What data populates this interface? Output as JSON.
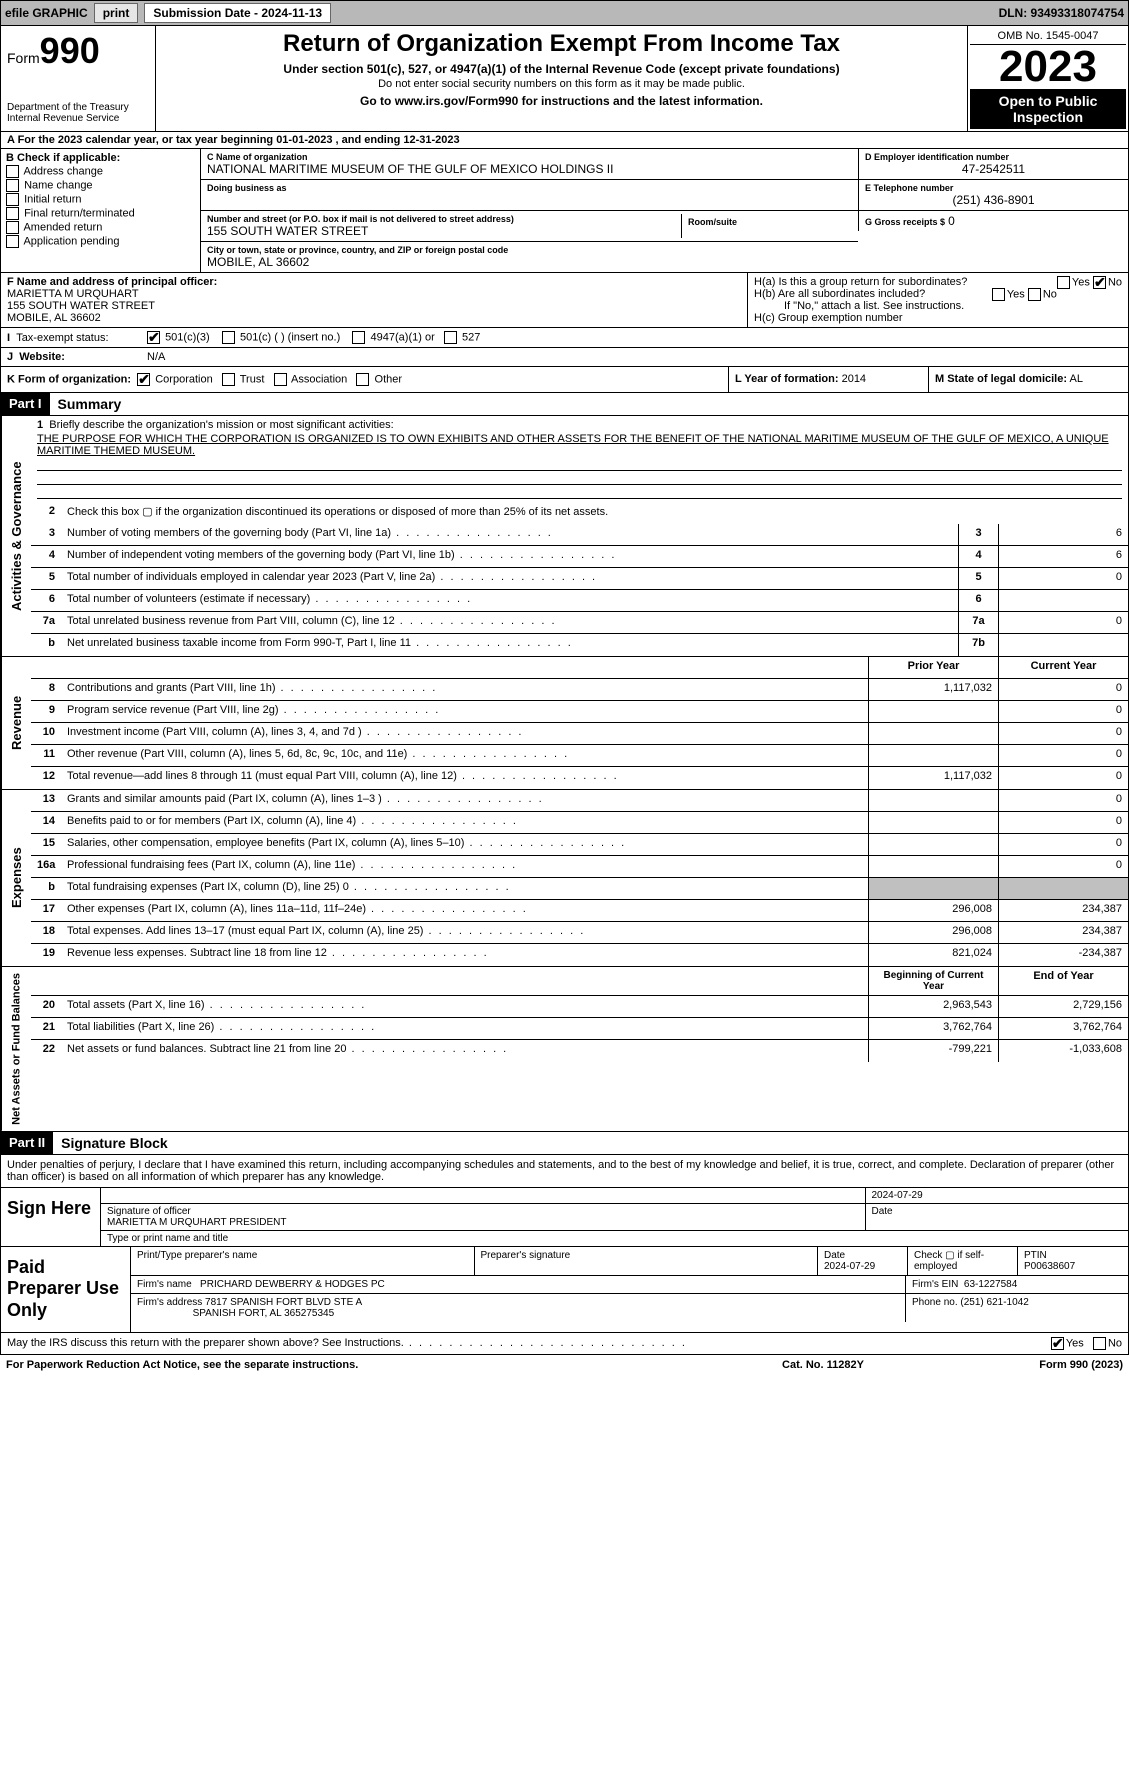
{
  "topbar": {
    "efile_label": "efile GRAPHIC",
    "print_btn": "print",
    "submission_label": "Submission Date - 2024-11-13",
    "dln": "DLN: 93493318074754"
  },
  "header": {
    "form_label": "Form",
    "form_number": "990",
    "dept": "Department of the Treasury Internal Revenue Service",
    "title": "Return of Organization Exempt From Income Tax",
    "subtitle": "Under section 501(c), 527, or 4947(a)(1) of the Internal Revenue Code (except private foundations)",
    "warn": "Do not enter social security numbers on this form as it may be made public.",
    "goto": "Go to www.irs.gov/Form990 for instructions and the latest information.",
    "omb": "OMB No. 1545-0047",
    "year": "2023",
    "public": "Open to Public Inspection"
  },
  "period": {
    "text": "A For the 2023 calendar year, or tax year beginning 01-01-2023    , and ending 12-31-2023"
  },
  "boxB": {
    "label": "B Check if applicable:",
    "opts": [
      "Address change",
      "Name change",
      "Initial return",
      "Final return/terminated",
      "Amended return",
      "Application pending"
    ]
  },
  "boxC": {
    "name_label": "C Name of organization",
    "name": "NATIONAL MARITIME MUSEUM OF THE GULF OF MEXICO HOLDINGS II",
    "dba_label": "Doing business as",
    "street_label": "Number and street (or P.O. box if mail is not delivered to street address)",
    "room_label": "Room/suite",
    "street": "155 SOUTH WATER STREET",
    "city_label": "City or town, state or province, country, and ZIP or foreign postal code",
    "city": "MOBILE, AL  36602"
  },
  "boxD": {
    "label": "D Employer identification number",
    "value": "47-2542511"
  },
  "boxE": {
    "label": "E Telephone number",
    "value": "(251) 436-8901"
  },
  "boxG": {
    "label": "G Gross receipts $",
    "value": "0"
  },
  "boxF": {
    "label": "F Name and address of principal officer:",
    "name": "MARIETTA M URQUHART",
    "street": "155 SOUTH WATER STREET",
    "city": "MOBILE, AL  36602"
  },
  "boxH": {
    "a_label": "H(a)  Is this a group return for subordinates?",
    "yes": "Yes",
    "no": "No",
    "b_label": "H(b)  Are all subordinates included?",
    "b_note": "If \"No,\" attach a list. See instructions.",
    "c_label": "H(c)  Group exemption number"
  },
  "taxStatus": {
    "label": "Tax-exempt status:",
    "opt1": "501(c)(3)",
    "opt2": "501(c) (  ) (insert no.)",
    "opt3": "4947(a)(1) or",
    "opt4": "527"
  },
  "website": {
    "label": "Website:",
    "value": "N/A"
  },
  "rowK": {
    "k_label": "K Form of organization:",
    "opts": [
      "Corporation",
      "Trust",
      "Association",
      "Other"
    ],
    "l_label": "L Year of formation:",
    "l_value": "2014",
    "m_label": "M State of legal domicile:",
    "m_value": "AL"
  },
  "part1": {
    "header": "Part I",
    "title": "Summary"
  },
  "section_labels": {
    "activities": "Activities & Governance",
    "revenue": "Revenue",
    "expenses": "Expenses",
    "netassets": "Net Assets or Fund Balances"
  },
  "mission": {
    "num": "1",
    "label": "Briefly describe the organization's mission or most significant activities:",
    "text": "THE PURPOSE FOR WHICH THE CORPORATION IS ORGANIZED IS TO OWN EXHIBITS AND OTHER ASSETS FOR THE BENEFIT OF THE NATIONAL MARITIME MUSEUM OF THE GULF OF MEXICO, A UNIQUE MARITIME THEMED MUSEUM."
  },
  "lines_gov": [
    {
      "num": "2",
      "desc": "Check this box ▢ if the organization discontinued its operations or disposed of more than 25% of its net assets.",
      "box": "",
      "val": ""
    },
    {
      "num": "3",
      "desc": "Number of voting members of the governing body (Part VI, line 1a)",
      "box": "3",
      "val": "6"
    },
    {
      "num": "4",
      "desc": "Number of independent voting members of the governing body (Part VI, line 1b)",
      "box": "4",
      "val": "6"
    },
    {
      "num": "5",
      "desc": "Total number of individuals employed in calendar year 2023 (Part V, line 2a)",
      "box": "5",
      "val": "0"
    },
    {
      "num": "6",
      "desc": "Total number of volunteers (estimate if necessary)",
      "box": "6",
      "val": ""
    },
    {
      "num": "7a",
      "desc": "Total unrelated business revenue from Part VIII, column (C), line 12",
      "box": "7a",
      "val": "0"
    },
    {
      "num": "b",
      "desc": "Net unrelated business taxable income from Form 990-T, Part I, line 11",
      "box": "7b",
      "val": ""
    }
  ],
  "col_headers": {
    "prior": "Prior Year",
    "current": "Current Year"
  },
  "lines_rev": [
    {
      "num": "8",
      "desc": "Contributions and grants (Part VIII, line 1h)",
      "prior": "1,117,032",
      "current": "0"
    },
    {
      "num": "9",
      "desc": "Program service revenue (Part VIII, line 2g)",
      "prior": "",
      "current": "0"
    },
    {
      "num": "10",
      "desc": "Investment income (Part VIII, column (A), lines 3, 4, and 7d )",
      "prior": "",
      "current": "0"
    },
    {
      "num": "11",
      "desc": "Other revenue (Part VIII, column (A), lines 5, 6d, 8c, 9c, 10c, and 11e)",
      "prior": "",
      "current": "0"
    },
    {
      "num": "12",
      "desc": "Total revenue—add lines 8 through 11 (must equal Part VIII, column (A), line 12)",
      "prior": "1,117,032",
      "current": "0"
    }
  ],
  "lines_exp": [
    {
      "num": "13",
      "desc": "Grants and similar amounts paid (Part IX, column (A), lines 1–3 )",
      "prior": "",
      "current": "0"
    },
    {
      "num": "14",
      "desc": "Benefits paid to or for members (Part IX, column (A), line 4)",
      "prior": "",
      "current": "0"
    },
    {
      "num": "15",
      "desc": "Salaries, other compensation, employee benefits (Part IX, column (A), lines 5–10)",
      "prior": "",
      "current": "0"
    },
    {
      "num": "16a",
      "desc": "Professional fundraising fees (Part IX, column (A), line 11e)",
      "prior": "",
      "current": "0"
    },
    {
      "num": "b",
      "desc": "Total fundraising expenses (Part IX, column (D), line 25) 0",
      "prior": "SHADED",
      "current": "SHADED"
    },
    {
      "num": "17",
      "desc": "Other expenses (Part IX, column (A), lines 11a–11d, 11f–24e)",
      "prior": "296,008",
      "current": "234,387"
    },
    {
      "num": "18",
      "desc": "Total expenses. Add lines 13–17 (must equal Part IX, column (A), line 25)",
      "prior": "296,008",
      "current": "234,387"
    },
    {
      "num": "19",
      "desc": "Revenue less expenses. Subtract line 18 from line 12",
      "prior": "821,024",
      "current": "-234,387"
    }
  ],
  "col_headers2": {
    "prior": "Beginning of Current Year",
    "current": "End of Year"
  },
  "lines_net": [
    {
      "num": "20",
      "desc": "Total assets (Part X, line 16)",
      "prior": "2,963,543",
      "current": "2,729,156"
    },
    {
      "num": "21",
      "desc": "Total liabilities (Part X, line 26)",
      "prior": "3,762,764",
      "current": "3,762,764"
    },
    {
      "num": "22",
      "desc": "Net assets or fund balances. Subtract line 21 from line 20",
      "prior": "-799,221",
      "current": "-1,033,608"
    }
  ],
  "part2": {
    "header": "Part II",
    "title": "Signature Block",
    "intro": "Under penalties of perjury, I declare that I have examined this return, including accompanying schedules and statements, and to the best of my knowledge and belief, it is true, correct, and complete. Declaration of preparer (other than officer) is based on all information of which preparer has any knowledge."
  },
  "sign": {
    "left": "Sign Here",
    "sig_label": "Signature of officer",
    "date": "2024-07-29",
    "date_label": "Date",
    "name": "MARIETTA M URQUHART PRESIDENT",
    "name_label": "Type or print name and title"
  },
  "paid": {
    "left": "Paid Preparer Use Only",
    "col1": "Print/Type preparer's name",
    "col2": "Preparer's signature",
    "col3_label": "Date",
    "col3_val": "2024-07-29",
    "col4": "Check ▢ if self-employed",
    "ptin_label": "PTIN",
    "ptin": "P00638607",
    "firm_name_label": "Firm's name",
    "firm_name": "PRICHARD DEWBERRY & HODGES PC",
    "firm_ein_label": "Firm's EIN",
    "firm_ein": "63-1227584",
    "firm_addr_label": "Firm's address",
    "firm_addr1": "7817 SPANISH FORT BLVD STE A",
    "firm_addr2": "SPANISH FORT, AL  365275345",
    "phone_label": "Phone no.",
    "phone": "(251) 621-1042"
  },
  "discuss": {
    "q": "May the IRS discuss this return with the preparer shown above? See Instructions.",
    "yes": "Yes",
    "no": "No"
  },
  "footer": {
    "left": "For Paperwork Reduction Act Notice, see the separate instructions.",
    "center": "Cat. No. 11282Y",
    "right": "Form 990 (2023)"
  }
}
